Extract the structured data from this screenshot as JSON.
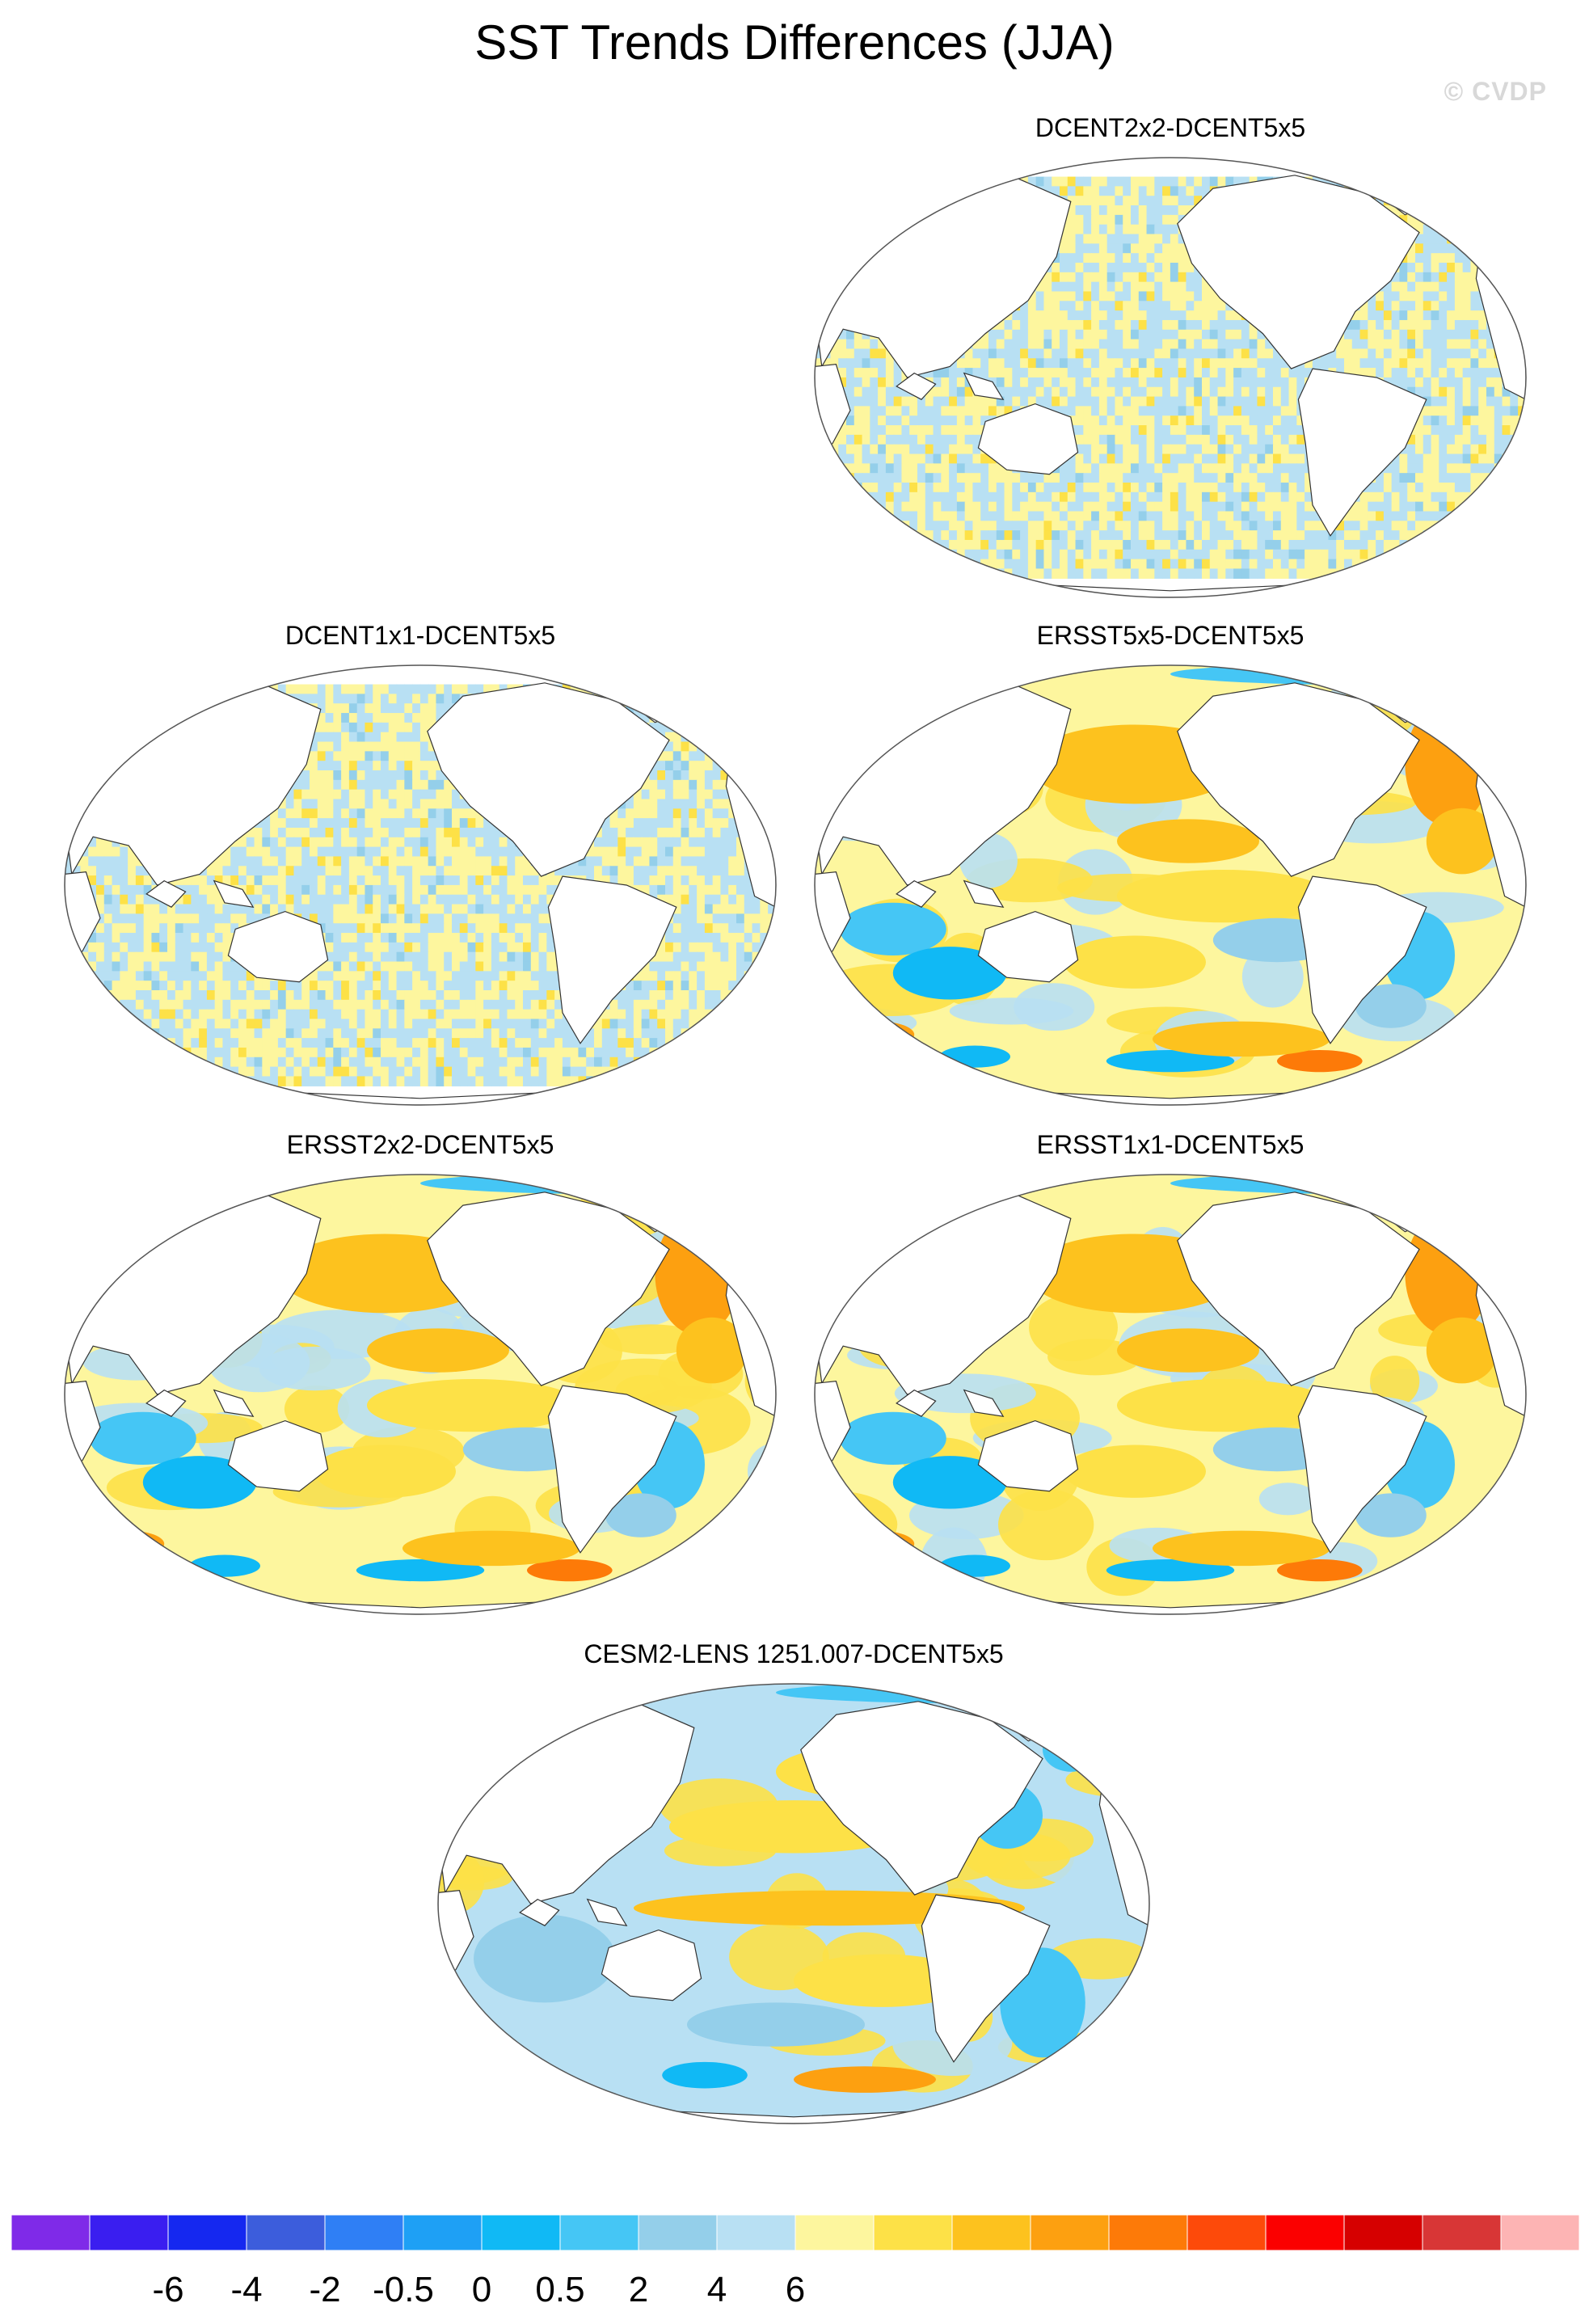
{
  "title": "SST Trends Differences (JJA)",
  "copyright": "© CVDP",
  "chart_data": {
    "type": "heatmap",
    "projection": "Robinson (Pacific-centered)",
    "colorbar": {
      "colors": [
        "#7f2ae8",
        "#3a1ef0",
        "#1528f0",
        "#3c5ddc",
        "#2f7ff5",
        "#1ea0f5",
        "#10b9f5",
        "#45c6f5",
        "#94cfea",
        "#b8e0f3",
        "#fdf69e",
        "#fde147",
        "#fdc21e",
        "#fda010",
        "#fd7a08",
        "#fd4a0a",
        "#fb0000",
        "#d60000",
        "#d83636",
        "#fdb4b4"
      ],
      "labels": [
        "-6",
        "-4",
        "-2",
        "-0.5",
        "0",
        "0.5",
        "2",
        "4",
        "6"
      ]
    },
    "panels": [
      {
        "title": "DCENT2x2-DCENT5x5",
        "pattern": "speckle"
      },
      {
        "title": "DCENT1x1-DCENT5x5",
        "pattern": "speckle"
      },
      {
        "title": "ERSST5x5-DCENT5x5",
        "pattern": "ersst"
      },
      {
        "title": "ERSST2x2-DCENT5x5",
        "pattern": "ersst"
      },
      {
        "title": "ERSST1x1-DCENT5x5",
        "pattern": "ersst"
      },
      {
        "title": "CESM2-LENS 1251.007-DCENT5x5",
        "pattern": "cesm"
      }
    ]
  }
}
